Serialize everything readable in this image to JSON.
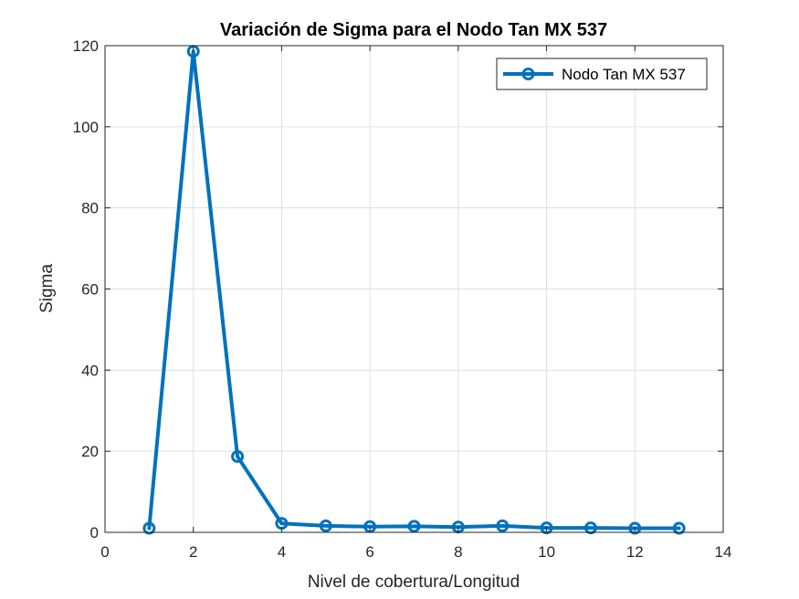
{
  "chart_data": {
    "type": "line",
    "title": "Variación de Sigma para el Nodo Tan MX 537",
    "xlabel": "Nivel de cobertura/Longitud",
    "ylabel": "Sigma",
    "xlim": [
      0,
      14
    ],
    "ylim": [
      0,
      120
    ],
    "xticks": [
      0,
      2,
      4,
      6,
      8,
      10,
      12,
      14
    ],
    "yticks": [
      0,
      20,
      40,
      60,
      80,
      100,
      120
    ],
    "grid": true,
    "legend_position": "top-right",
    "series": [
      {
        "name": "Nodo Tan MX 537",
        "color": "#0072BD",
        "marker": "circle",
        "x": [
          1,
          2,
          3,
          4,
          5,
          6,
          7,
          8,
          9,
          10,
          11,
          12,
          13
        ],
        "y": [
          1.0,
          118.6,
          18.7,
          2.2,
          1.6,
          1.4,
          1.5,
          1.3,
          1.6,
          1.1,
          1.1,
          1.0,
          1.0
        ]
      }
    ]
  }
}
